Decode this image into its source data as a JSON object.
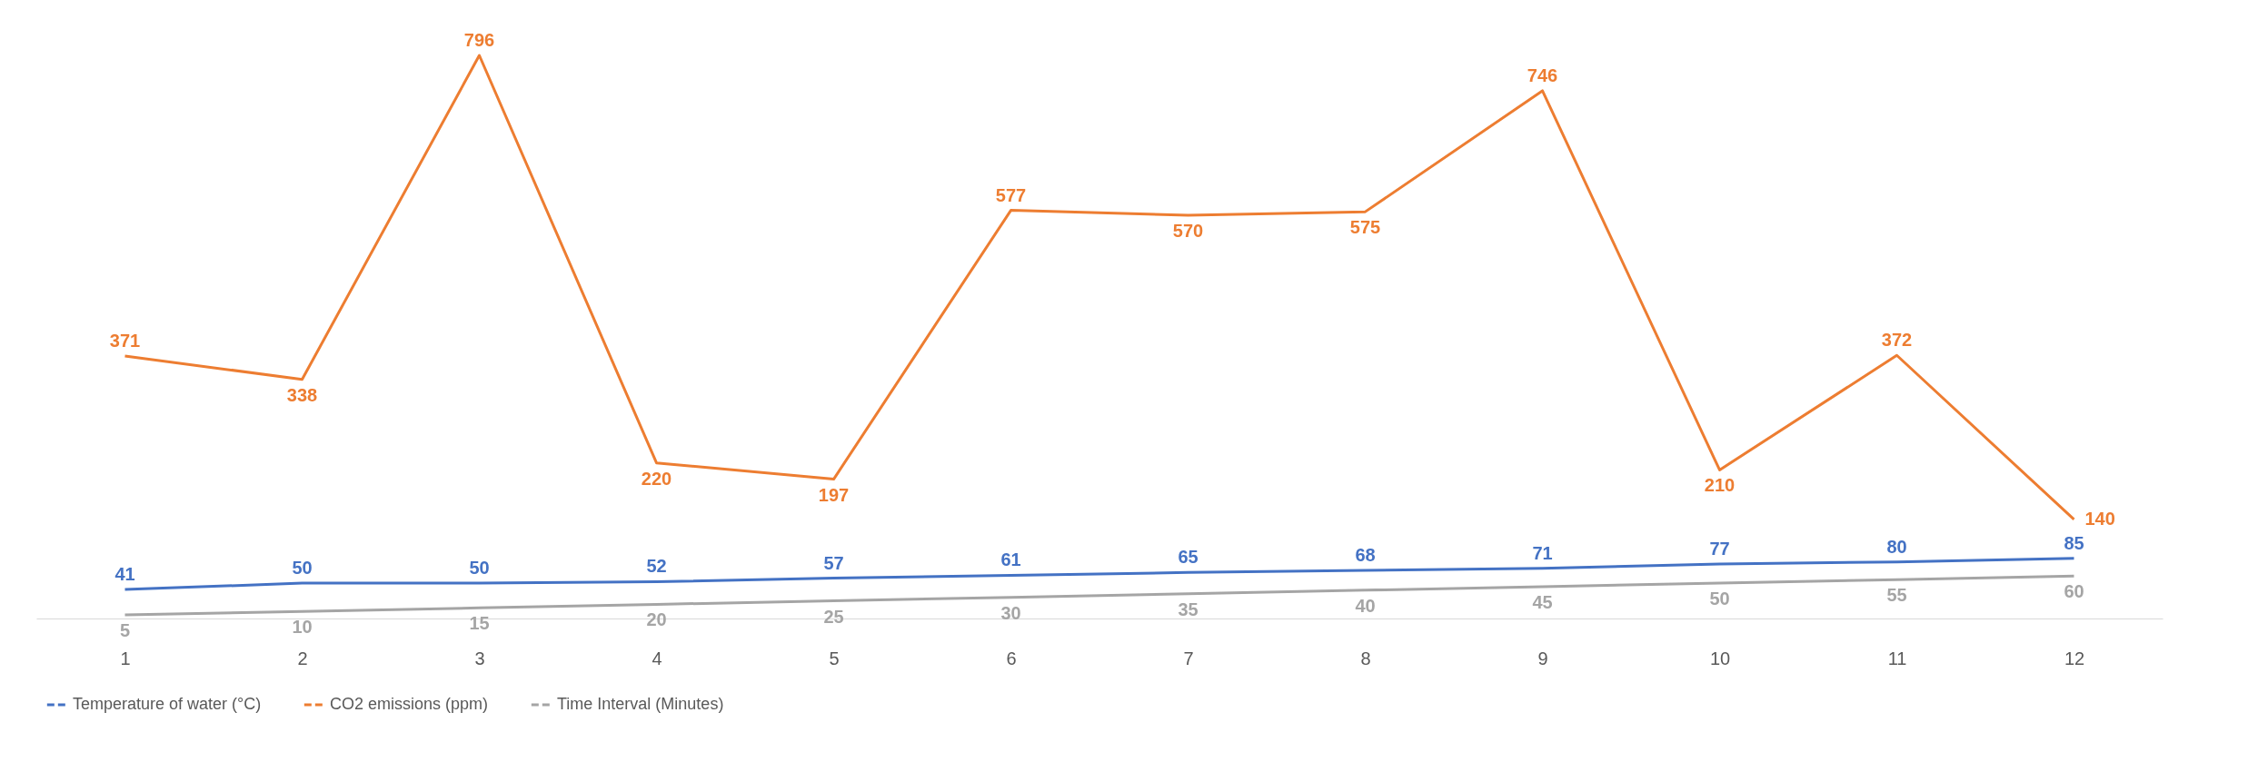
{
  "chart_data": {
    "type": "line",
    "categories": [
      "1",
      "2",
      "3",
      "4",
      "5",
      "6",
      "7",
      "8",
      "9",
      "10",
      "11",
      "12"
    ],
    "series": [
      {
        "name": "Temperature of water (°C)",
        "color": "#4472c4",
        "values": [
          41,
          50,
          50,
          52,
          57,
          61,
          65,
          68,
          71,
          77,
          80,
          85
        ]
      },
      {
        "name": "CO2 emissions (ppm)",
        "color": "#ed7d31",
        "values": [
          371,
          338,
          796,
          220,
          197,
          577,
          570,
          575,
          746,
          210,
          372,
          140
        ]
      },
      {
        "name": "Time Interval (Minutes)",
        "color": "#a5a5a5",
        "values": [
          5,
          10,
          15,
          20,
          25,
          30,
          35,
          40,
          45,
          50,
          55,
          60
        ]
      }
    ],
    "data_labels": true,
    "legend": "bottom",
    "grid": false,
    "marker": "none",
    "line_style": "solid"
  }
}
